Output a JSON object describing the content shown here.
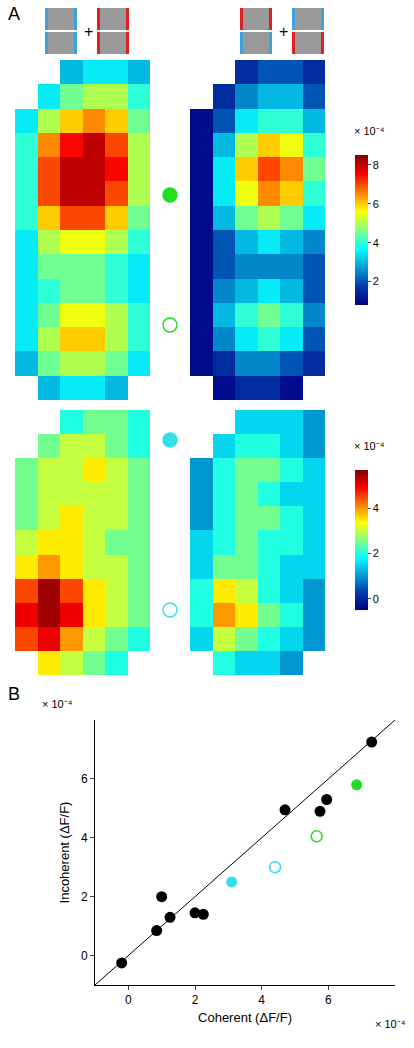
{
  "chart_data": [
    {
      "type": "heatmap",
      "panel": "A",
      "stimuli": [
        "+",
        "+"
      ],
      "zlim": [
        0.8,
        8.5
      ],
      "zticks": [
        2,
        4,
        6,
        8
      ],
      "colorbar_label": "× 10⁻⁴",
      "markers": [
        {
          "color": "#22dd22",
          "marker": "filled"
        },
        {
          "color": "#22dd22",
          "marker": "open"
        }
      ],
      "maps": [
        [
          [
            null,
            null,
            3,
            3.5,
            3.5,
            3
          ],
          [
            null,
            3.5,
            4.5,
            5,
            5,
            4
          ],
          [
            3.5,
            5,
            6,
            6.5,
            6,
            4.5
          ],
          [
            4,
            6.5,
            7.5,
            8,
            7,
            5
          ],
          [
            4,
            7,
            8,
            8,
            7.5,
            5
          ],
          [
            4,
            7,
            8,
            8,
            7,
            5
          ],
          [
            4,
            6,
            7,
            7,
            6,
            4.5
          ],
          [
            3.5,
            5,
            5.5,
            5.5,
            5,
            4
          ],
          [
            3.5,
            4.5,
            4.5,
            4.5,
            4,
            3.5
          ],
          [
            3.5,
            4,
            4.5,
            4.5,
            4,
            3.5
          ],
          [
            3.5,
            4.5,
            5.5,
            5.5,
            5,
            4
          ],
          [
            3.5,
            5,
            6,
            6,
            5,
            4
          ],
          [
            3,
            4.5,
            5,
            5,
            4.5,
            3.5
          ],
          [
            null,
            3,
            3.5,
            3.5,
            3,
            null
          ]
        ],
        [
          [
            null,
            null,
            1.5,
            2,
            2,
            1.5
          ],
          [
            null,
            1.5,
            2.5,
            3,
            3,
            2
          ],
          [
            1,
            2,
            3.5,
            4,
            4,
            3
          ],
          [
            1,
            3,
            5,
            6,
            5.5,
            4
          ],
          [
            1,
            3.5,
            6,
            7,
            6.5,
            4.5
          ],
          [
            1,
            3.5,
            5.5,
            6.5,
            6,
            4
          ],
          [
            1,
            3,
            4.5,
            5,
            4.5,
            3.5
          ],
          [
            1,
            2,
            3,
            3.5,
            3,
            2.5
          ],
          [
            1,
            2,
            2.5,
            2.5,
            2.5,
            2
          ],
          [
            1,
            2.5,
            3,
            3.5,
            3,
            2
          ],
          [
            1,
            3,
            4,
            4.5,
            4,
            2.5
          ],
          [
            1,
            2.5,
            3.5,
            4,
            3.5,
            2
          ],
          [
            1,
            1.5,
            2.5,
            2.5,
            2,
            1.5
          ],
          [
            null,
            1,
            1.5,
            1.5,
            1,
            null
          ]
        ]
      ]
    },
    {
      "type": "heatmap",
      "zlim": [
        -0.5,
        5.7
      ],
      "zticks": [
        0,
        2,
        4
      ],
      "colorbar_label": "× 10⁻⁴",
      "markers": [
        {
          "color": "#33e0e8",
          "marker": "filled"
        },
        {
          "color": "#33e0e8",
          "marker": "open"
        }
      ],
      "maps": [
        [
          [
            null,
            null,
            2,
            2.5,
            2.5,
            2
          ],
          [
            null,
            2.5,
            3,
            3,
            2.5,
            2
          ],
          [
            2.5,
            3,
            3,
            3.5,
            3,
            2.5
          ],
          [
            2.5,
            3,
            3,
            3,
            3,
            2.5
          ],
          [
            2.5,
            3,
            3.5,
            3,
            3,
            2.5
          ],
          [
            3,
            3.5,
            3.5,
            3,
            2.5,
            2.5
          ],
          [
            3.5,
            4,
            3.5,
            3,
            3,
            2.5
          ],
          [
            4.5,
            5.5,
            4.5,
            3.5,
            3,
            2.5
          ],
          [
            5,
            5.5,
            5,
            3.5,
            3,
            2.5
          ],
          [
            4.5,
            5,
            4,
            3,
            2.5,
            2
          ],
          [
            null,
            3.5,
            3,
            2.5,
            2,
            null
          ]
        ],
        [
          [
            null,
            null,
            1.5,
            1.5,
            1.5,
            1
          ],
          [
            null,
            1.5,
            2,
            2,
            1.5,
            1
          ],
          [
            1,
            2,
            2.5,
            2.5,
            2,
            1.5
          ],
          [
            1,
            2,
            2.5,
            2,
            1.5,
            1.5
          ],
          [
            1,
            2,
            2.5,
            2.5,
            2,
            1.5
          ],
          [
            1.5,
            2,
            2.5,
            2,
            2,
            1.5
          ],
          [
            1.5,
            2.5,
            2.5,
            2,
            1.5,
            1.5
          ],
          [
            2,
            3.5,
            3,
            2,
            1.5,
            1
          ],
          [
            2,
            4,
            3.5,
            2.5,
            2,
            1
          ],
          [
            1.5,
            3,
            2.5,
            2,
            1.5,
            1
          ],
          [
            null,
            2,
            1.5,
            1.5,
            1,
            null
          ]
        ]
      ]
    },
    {
      "type": "scatter",
      "panel": "B",
      "x_label": "Coherent (ΔF/F)",
      "y_label": "Incoherent (ΔF/F)",
      "x_exponent": "× 10⁻⁴",
      "y_exponent": "× 10⁻⁴",
      "xlim": [
        -1,
        8
      ],
      "ylim": [
        -1,
        8
      ],
      "xticks": [
        0,
        2,
        4,
        6
      ],
      "yticks": [
        0,
        2,
        4,
        6
      ],
      "series": [
        {
          "color": "#000000",
          "marker": "filled",
          "x": [
            -0.2,
            0.85,
            1.0,
            1.25,
            2.0,
            2.25,
            4.7,
            5.75,
            5.95,
            7.3
          ],
          "y": [
            -0.25,
            0.85,
            2.0,
            1.3,
            1.45,
            1.4,
            4.95,
            4.9,
            5.3,
            7.25
          ]
        },
        {
          "color": "#22dd22",
          "marker": "filled",
          "x": [
            6.85
          ],
          "y": [
            5.8
          ]
        },
        {
          "color": "#22dd22",
          "marker": "open",
          "x": [
            5.65
          ],
          "y": [
            4.05
          ]
        },
        {
          "color": "#33e0e8",
          "marker": "filled",
          "x": [
            3.1
          ],
          "y": [
            2.5
          ]
        },
        {
          "color": "#33e0e8",
          "marker": "open",
          "x": [
            4.4
          ],
          "y": [
            3.0
          ]
        }
      ]
    }
  ]
}
